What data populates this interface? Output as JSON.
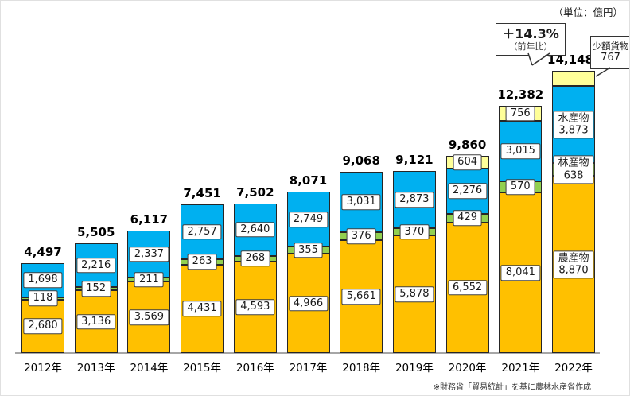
{
  "page": {
    "unit_note": "（単位：億円）",
    "footnote": "※財務省「貿易統計」を基に農林水産省作成"
  },
  "annotation": {
    "growth_value": "＋14.3%",
    "growth_basis": "（前年比）"
  },
  "small_cargo_callout": {
    "label": "少額貨物",
    "value": "767"
  },
  "chart_data": {
    "type": "bar",
    "stacked": true,
    "unit": "億円",
    "title": "",
    "categories": [
      "2012年",
      "2013年",
      "2014年",
      "2015年",
      "2016年",
      "2017年",
      "2018年",
      "2019年",
      "2020年",
      "2021年",
      "2022年"
    ],
    "series": [
      {
        "name": "農産物",
        "color": "#FFC000",
        "values": [
          2680,
          3136,
          3569,
          4431,
          4593,
          4966,
          5661,
          5878,
          6552,
          8041,
          8870
        ]
      },
      {
        "name": "林産物",
        "color": "#92D050",
        "values": [
          118,
          152,
          211,
          263,
          268,
          355,
          376,
          370,
          429,
          570,
          638
        ]
      },
      {
        "name": "水産物",
        "color": "#00B0F0",
        "values": [
          1698,
          2216,
          2337,
          2757,
          2640,
          2749,
          3031,
          2873,
          2276,
          3015,
          3873
        ]
      },
      {
        "name": "少額貨物",
        "color": "#FFFF99",
        "values": [
          0,
          0,
          0,
          0,
          0,
          0,
          0,
          0,
          604,
          756,
          767
        ]
      }
    ],
    "totals": [
      4497,
      5505,
      6117,
      7451,
      7502,
      8071,
      9068,
      9121,
      9860,
      12382,
      14148
    ],
    "ylim": [
      0,
      14148
    ],
    "grid": false,
    "legend_position": "series-names-shown-inside-last-bar-labels"
  }
}
